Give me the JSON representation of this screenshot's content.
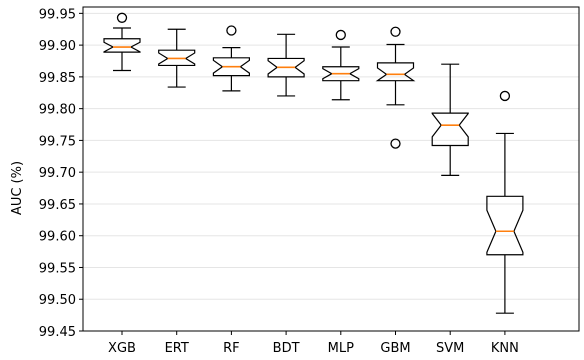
{
  "chart_data": {
    "type": "box",
    "ylabel": "AUC (%)",
    "ylim": [
      99.45,
      99.96
    ],
    "yticks": [
      "99.45",
      "99.50",
      "99.55",
      "99.60",
      "99.65",
      "99.70",
      "99.75",
      "99.80",
      "99.85",
      "99.90",
      "99.95"
    ],
    "categories": [
      "XGB",
      "ERT",
      "RF",
      "BDT",
      "MLP",
      "GBM",
      "SVM",
      "KNN"
    ],
    "notched": true,
    "grid_y": true,
    "colors": {
      "median": "#ff7f0e",
      "box": "#000000",
      "grid": "#e5e5e5"
    },
    "boxes": [
      {
        "name": "XGB",
        "whislo": 99.86,
        "q1": 99.889,
        "med": 99.897,
        "q3": 99.91,
        "whishi": 99.927,
        "fliers": [
          99.943
        ]
      },
      {
        "name": "ERT",
        "whislo": 99.834,
        "q1": 99.868,
        "med": 99.879,
        "q3": 99.892,
        "whishi": 99.925,
        "fliers": []
      },
      {
        "name": "RF",
        "whislo": 99.828,
        "q1": 99.852,
        "med": 99.866,
        "q3": 99.88,
        "whishi": 99.896,
        "fliers": [
          99.923
        ]
      },
      {
        "name": "BDT",
        "whislo": 99.82,
        "q1": 99.85,
        "med": 99.865,
        "q3": 99.879,
        "whishi": 99.917,
        "fliers": []
      },
      {
        "name": "MLP",
        "whislo": 99.814,
        "q1": 99.844,
        "med": 99.855,
        "q3": 99.866,
        "whishi": 99.897,
        "fliers": [
          99.916
        ]
      },
      {
        "name": "GBM",
        "whislo": 99.806,
        "q1": 99.844,
        "med": 99.854,
        "q3": 99.872,
        "whishi": 99.901,
        "fliers": [
          99.921,
          99.745
        ]
      },
      {
        "name": "SVM",
        "whislo": 99.695,
        "q1": 99.742,
        "med": 99.774,
        "q3": 99.793,
        "whishi": 99.87,
        "fliers": []
      },
      {
        "name": "KNN",
        "whislo": 99.478,
        "q1": 99.57,
        "med": 99.607,
        "q3": 99.662,
        "whishi": 99.761,
        "fliers": [
          99.82
        ]
      }
    ]
  }
}
